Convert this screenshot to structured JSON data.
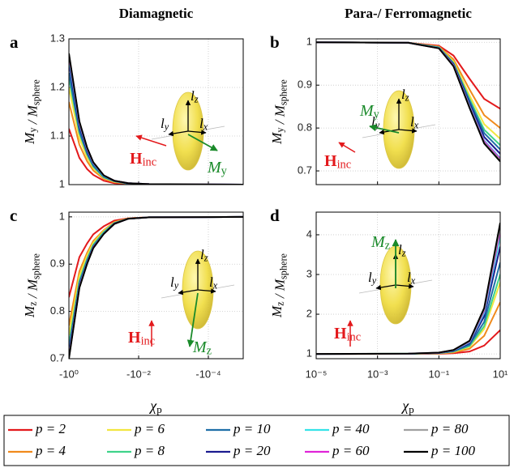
{
  "chart_data": [
    {
      "type": "line",
      "panel": "a",
      "title": "Diamagnetic",
      "ylabel": [
        {
          "text": "M",
          "sub": "y"
        },
        {
          "text": "/"
        },
        {
          "text": "M",
          "sub": "sphere"
        }
      ],
      "xscale": "log",
      "xlim": [
        -1,
        -1e-05
      ],
      "xticks": [
        -1,
        -0.01,
        -0.0001
      ],
      "xticklabels": false,
      "ylim": [
        1,
        1.3
      ],
      "yticks": [
        1,
        1.1,
        1.2,
        1.3
      ],
      "grid": true,
      "x": [
        -1,
        -0.5,
        -0.3,
        -0.2,
        -0.1,
        -0.05,
        -0.02,
        -0.005,
        -1e-05
      ],
      "series": [
        {
          "name": "p = 2",
          "color": "#e3191c",
          "values": [
            1.115,
            1.055,
            1.032,
            1.02,
            1.008,
            1.003,
            1.001,
            1,
            1
          ]
        },
        {
          "name": "p = 4",
          "color": "#f08a1c",
          "values": [
            1.17,
            1.082,
            1.048,
            1.029,
            1.012,
            1.005,
            1.002,
            1,
            1
          ]
        },
        {
          "name": "p = 6",
          "color": "#f2e640",
          "values": [
            1.2,
            1.096,
            1.056,
            1.034,
            1.014,
            1.006,
            1.002,
            1,
            1
          ]
        },
        {
          "name": "p = 8",
          "color": "#3fd38a",
          "values": [
            1.22,
            1.106,
            1.062,
            1.037,
            1.015,
            1.007,
            1.002,
            1,
            1
          ]
        },
        {
          "name": "p = 10",
          "color": "#1f6fa8",
          "values": [
            1.23,
            1.11,
            1.064,
            1.039,
            1.016,
            1.007,
            1.002,
            1,
            1
          ]
        },
        {
          "name": "p = 20",
          "color": "#1b1b8f",
          "values": [
            1.25,
            1.12,
            1.07,
            1.043,
            1.018,
            1.008,
            1.003,
            1.001,
            1
          ]
        },
        {
          "name": "p = 40",
          "color": "#35e3e8",
          "values": [
            1.26,
            1.125,
            1.073,
            1.044,
            1.018,
            1.008,
            1.003,
            1.001,
            1
          ]
        },
        {
          "name": "p = 60",
          "color": "#e024d8",
          "values": [
            1.265,
            1.127,
            1.074,
            1.045,
            1.019,
            1.008,
            1.003,
            1.001,
            1
          ]
        },
        {
          "name": "p = 80",
          "color": "#a0a0a0",
          "values": [
            1.268,
            1.129,
            1.075,
            1.046,
            1.019,
            1.008,
            1.003,
            1.001,
            1
          ]
        },
        {
          "name": "p = 100",
          "color": "#000000",
          "values": [
            1.27,
            1.13,
            1.076,
            1.046,
            1.019,
            1.008,
            1.003,
            1.001,
            1
          ]
        }
      ],
      "annotations": [
        {
          "text": "l",
          "sub": "z"
        },
        {
          "text": "l",
          "sub": "y"
        },
        {
          "text": "l",
          "sub": "x"
        },
        {
          "text": "H",
          "sub": "inc"
        },
        {
          "text": "M",
          "sub": "y"
        }
      ]
    },
    {
      "type": "line",
      "panel": "b",
      "title": "Para-/ Ferromagnetic",
      "ylabel": [
        {
          "text": "M",
          "sub": "y"
        },
        {
          "text": "/"
        },
        {
          "text": "M",
          "sub": "sphere"
        }
      ],
      "xscale": "log",
      "xlim": [
        1e-05,
        10
      ],
      "xticks": [
        1e-05,
        0.001,
        0.1,
        10
      ],
      "xticklabels": false,
      "ylim": [
        0.668,
        1.008
      ],
      "yticks": [
        0.7,
        0.8,
        0.9,
        1
      ],
      "grid": true,
      "x": [
        1e-05,
        0.01,
        0.1,
        0.3,
        1,
        3,
        10
      ],
      "series": [
        {
          "values": [
            1,
            0.999,
            0.992,
            0.969,
            0.915,
            0.868,
            0.845
          ]
        },
        {
          "values": [
            1,
            0.999,
            0.99,
            0.96,
            0.89,
            0.83,
            0.8
          ]
        },
        {
          "values": [
            1,
            0.999,
            0.989,
            0.955,
            0.876,
            0.809,
            0.775
          ]
        },
        {
          "values": [
            1,
            0.999,
            0.988,
            0.952,
            0.868,
            0.796,
            0.76
          ]
        },
        {
          "values": [
            1,
            0.999,
            0.988,
            0.95,
            0.863,
            0.788,
            0.75
          ]
        },
        {
          "values": [
            1,
            0.999,
            0.987,
            0.948,
            0.857,
            0.779,
            0.74
          ]
        },
        {
          "values": [
            1,
            0.999,
            0.987,
            0.946,
            0.852,
            0.771,
            0.73
          ]
        },
        {
          "values": [
            1,
            0.999,
            0.986,
            0.946,
            0.85,
            0.769,
            0.728
          ]
        },
        {
          "values": [
            1,
            0.999,
            0.986,
            0.945,
            0.849,
            0.766,
            0.725
          ]
        },
        {
          "values": [
            1,
            0.999,
            0.986,
            0.944,
            0.847,
            0.764,
            0.722
          ]
        }
      ],
      "annotations": [
        {
          "text": "l",
          "sub": "z"
        },
        {
          "text": "l",
          "sub": "y"
        },
        {
          "text": "l",
          "sub": "x"
        },
        {
          "text": "H",
          "sub": "inc"
        },
        {
          "text": "M",
          "sub": "y"
        }
      ]
    },
    {
      "type": "line",
      "panel": "c",
      "ylabel": [
        {
          "text": "M",
          "sub": "z"
        },
        {
          "text": "/"
        },
        {
          "text": "M",
          "sub": "sphere"
        }
      ],
      "xlabel": [
        {
          "text": "χ",
          "sub": "p"
        }
      ],
      "xscale": "log",
      "xlim": [
        -1,
        -1e-05
      ],
      "xticks": [
        {
          "value": -1,
          "label": "-10⁰"
        },
        {
          "value": -0.01,
          "label": "-10⁻²"
        },
        {
          "value": -0.0001,
          "label": "-10⁻⁴"
        }
      ],
      "ylim": [
        0.7,
        1.01
      ],
      "yticks": [
        0.7,
        0.8,
        0.9,
        1
      ],
      "grid": true,
      "x": [
        -1,
        -0.5,
        -0.3,
        -0.2,
        -0.1,
        -0.05,
        -0.02,
        -0.005,
        -1e-05
      ],
      "series": [
        {
          "values": [
            0.83,
            0.915,
            0.944,
            0.963,
            0.98,
            0.992,
            0.997,
            0.999,
            1
          ]
        },
        {
          "values": [
            0.77,
            0.885,
            0.924,
            0.949,
            0.972,
            0.989,
            0.997,
            0.999,
            1
          ]
        },
        {
          "values": [
            0.75,
            0.875,
            0.918,
            0.945,
            0.97,
            0.988,
            0.996,
            0.999,
            1
          ]
        },
        {
          "values": [
            0.73,
            0.865,
            0.911,
            0.941,
            0.968,
            0.987,
            0.996,
            0.999,
            1
          ]
        },
        {
          "values": [
            0.72,
            0.86,
            0.908,
            0.938,
            0.966,
            0.986,
            0.996,
            0.999,
            1
          ]
        },
        {
          "values": [
            0.71,
            0.855,
            0.904,
            0.936,
            0.965,
            0.986,
            0.996,
            0.999,
            1
          ]
        },
        {
          "values": [
            0.705,
            0.853,
            0.903,
            0.935,
            0.965,
            0.985,
            0.996,
            0.999,
            1
          ]
        },
        {
          "values": [
            0.703,
            0.852,
            0.902,
            0.935,
            0.964,
            0.985,
            0.996,
            0.999,
            1
          ]
        },
        {
          "values": [
            0.701,
            0.851,
            0.901,
            0.934,
            0.964,
            0.985,
            0.996,
            0.999,
            1
          ]
        },
        {
          "values": [
            0.7,
            0.85,
            0.901,
            0.934,
            0.964,
            0.985,
            0.996,
            0.999,
            1
          ]
        }
      ],
      "annotations": [
        {
          "text": "l",
          "sub": "z"
        },
        {
          "text": "l",
          "sub": "y"
        },
        {
          "text": "l",
          "sub": "x"
        },
        {
          "text": "H",
          "sub": "inc"
        },
        {
          "text": "M",
          "sub": "z"
        }
      ]
    },
    {
      "type": "line",
      "panel": "d",
      "ylabel": [
        {
          "text": "M",
          "sub": "z"
        },
        {
          "text": "/"
        },
        {
          "text": "M",
          "sub": "sphere"
        }
      ],
      "xlabel": [
        {
          "text": "χ",
          "sub": "p"
        }
      ],
      "xscale": "log",
      "xlim": [
        1e-05,
        10
      ],
      "xticks": [
        {
          "value": 1e-05,
          "label": "10⁻⁵"
        },
        {
          "value": 0.001,
          "label": "10⁻³"
        },
        {
          "value": 0.1,
          "label": "10⁻¹"
        },
        {
          "value": 10,
          "label": "10¹"
        }
      ],
      "ylim": [
        0.88,
        4.57
      ],
      "yticks": [
        1,
        2,
        3,
        4
      ],
      "grid": true,
      "x": [
        1e-05,
        0.01,
        0.1,
        0.3,
        1,
        3,
        10
      ],
      "series": [
        {
          "values": [
            1,
            1.001,
            1.006,
            1.018,
            1.06,
            1.21,
            1.6
          ]
        },
        {
          "values": [
            1,
            1.003,
            1.013,
            1.039,
            1.13,
            1.455,
            2.3
          ]
        },
        {
          "values": [
            1,
            1.004,
            1.018,
            1.054,
            1.18,
            1.63,
            2.8
          ]
        },
        {
          "values": [
            1,
            1.004,
            1.02,
            1.06,
            1.2,
            1.7,
            3
          ]
        },
        {
          "values": [
            1,
            1.005,
            1.023,
            1.069,
            1.23,
            1.805,
            3.3
          ]
        },
        {
          "values": [
            1,
            1.005,
            1.027,
            1.081,
            1.27,
            1.945,
            3.7
          ]
        },
        {
          "values": [
            1,
            1.006,
            1.03,
            1.089,
            1.295,
            2.033,
            3.95
          ]
        },
        {
          "values": [
            1,
            1.006,
            1.031,
            1.093,
            1.31,
            2.085,
            4.1
          ]
        },
        {
          "values": [
            1,
            1.006,
            1.032,
            1.096,
            1.32,
            2.12,
            4.2
          ]
        },
        {
          "values": [
            1,
            1.007,
            1.033,
            1.099,
            1.33,
            2.155,
            4.3
          ]
        }
      ],
      "annotations": [
        {
          "text": "l",
          "sub": "z"
        },
        {
          "text": "l",
          "sub": "y"
        },
        {
          "text": "l",
          "sub": "x"
        },
        {
          "text": "H",
          "sub": "inc"
        },
        {
          "text": "M",
          "sub": "z"
        }
      ]
    }
  ]
}
